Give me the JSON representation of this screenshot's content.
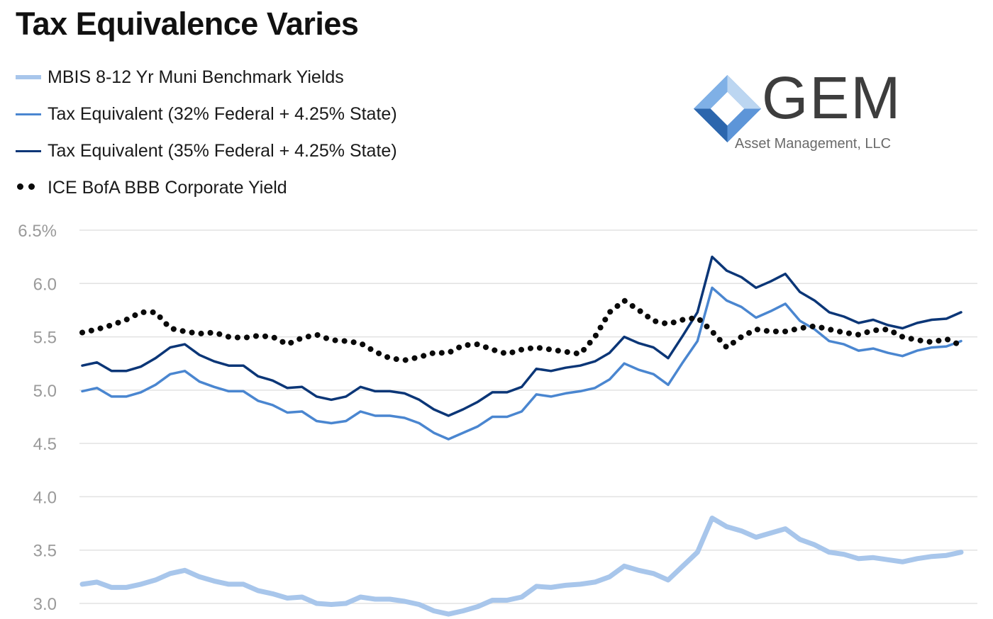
{
  "title": "Tax Equivalence Varies",
  "logo": {
    "name": "GEM",
    "subtitle": "Asset Management, LLC"
  },
  "colors": {
    "muni": "#a8c6eb",
    "te32": "#4a86d0",
    "te35": "#0b3677",
    "bbb": "#0a0a0a",
    "grid": "#e2e2e2",
    "tick": "#9a9a9a"
  },
  "chart_data": {
    "type": "line",
    "title": "Tax Equivalence Varies",
    "xlabel": "",
    "ylabel": "",
    "ylim": [
      3.0,
      6.5
    ],
    "yticks": [
      {
        "value": 6.5,
        "label": "6.5%"
      },
      {
        "value": 6.0,
        "label": "6.0"
      },
      {
        "value": 5.5,
        "label": "5.5"
      },
      {
        "value": 5.0,
        "label": "5.0"
      },
      {
        "value": 4.5,
        "label": "4.5"
      },
      {
        "value": 4.0,
        "label": "4.0"
      },
      {
        "value": 3.5,
        "label": "3.5"
      },
      {
        "value": 3.0,
        "label": "3.0"
      }
    ],
    "grid": true,
    "legend_position": "top-left",
    "x": [
      0,
      1,
      2,
      3,
      4,
      5,
      6,
      7,
      8,
      9,
      10,
      11,
      12,
      13,
      14,
      15,
      16,
      17,
      18,
      19,
      20,
      21,
      22,
      23,
      24,
      25,
      26,
      27,
      28,
      29,
      30,
      31,
      32,
      33,
      34,
      35,
      36,
      37,
      38,
      39,
      40,
      41,
      42,
      43,
      44,
      45,
      46,
      47,
      48,
      49,
      50,
      51,
      52,
      53,
      54,
      55,
      56,
      57,
      58,
      59,
      60
    ],
    "series": [
      {
        "name": "MBIS 8-12 Yr Muni Benchmark Yields",
        "style": "muni",
        "values": [
          3.18,
          3.2,
          3.15,
          3.15,
          3.18,
          3.22,
          3.28,
          3.31,
          3.25,
          3.21,
          3.18,
          3.18,
          3.12,
          3.09,
          3.05,
          3.06,
          3.0,
          2.99,
          3.0,
          3.06,
          3.04,
          3.04,
          3.02,
          2.99,
          2.93,
          2.9,
          2.93,
          2.97,
          3.03,
          3.03,
          3.06,
          3.16,
          3.15,
          3.17,
          3.18,
          3.2,
          3.25,
          3.35,
          3.31,
          3.28,
          3.22,
          3.35,
          3.48,
          3.8,
          3.72,
          3.68,
          3.62,
          3.66,
          3.7,
          3.6,
          3.55,
          3.48,
          3.46,
          3.42,
          3.43,
          3.41,
          3.39,
          3.42,
          3.44,
          3.45,
          3.48
        ]
      },
      {
        "name": "Tax Equivalent (32% Federal + 4.25% State)",
        "style": "te32",
        "values": [
          4.99,
          5.02,
          4.94,
          4.94,
          4.98,
          5.05,
          5.15,
          5.18,
          5.08,
          5.03,
          4.99,
          4.99,
          4.9,
          4.86,
          4.79,
          4.8,
          4.71,
          4.69,
          4.71,
          4.8,
          4.76,
          4.76,
          4.74,
          4.69,
          4.6,
          4.54,
          4.6,
          4.66,
          4.75,
          4.75,
          4.8,
          4.96,
          4.94,
          4.97,
          4.99,
          5.02,
          5.1,
          5.25,
          5.19,
          5.15,
          5.05,
          5.26,
          5.46,
          5.96,
          5.84,
          5.78,
          5.68,
          5.74,
          5.81,
          5.65,
          5.57,
          5.46,
          5.43,
          5.37,
          5.39,
          5.35,
          5.32,
          5.37,
          5.4,
          5.41,
          5.46
        ]
      },
      {
        "name": "Tax Equivalent (35% Federal + 4.25% State)",
        "style": "te35",
        "values": [
          5.23,
          5.26,
          5.18,
          5.18,
          5.22,
          5.3,
          5.4,
          5.43,
          5.33,
          5.27,
          5.23,
          5.23,
          5.13,
          5.09,
          5.02,
          5.03,
          4.94,
          4.91,
          4.94,
          5.03,
          4.99,
          4.99,
          4.97,
          4.91,
          4.82,
          4.76,
          4.82,
          4.89,
          4.98,
          4.98,
          5.03,
          5.2,
          5.18,
          5.21,
          5.23,
          5.27,
          5.35,
          5.5,
          5.44,
          5.4,
          5.3,
          5.51,
          5.73,
          6.25,
          6.12,
          6.06,
          5.96,
          6.02,
          6.09,
          5.92,
          5.84,
          5.73,
          5.69,
          5.63,
          5.66,
          5.61,
          5.58,
          5.63,
          5.66,
          5.67,
          5.73
        ]
      },
      {
        "name": "ICE BofA BBB Corporate Yield",
        "style": "bbb",
        "values": [
          5.54,
          5.57,
          5.61,
          5.66,
          5.73,
          5.73,
          5.58,
          5.55,
          5.53,
          5.54,
          5.5,
          5.49,
          5.51,
          5.5,
          5.43,
          5.49,
          5.52,
          5.47,
          5.46,
          5.44,
          5.36,
          5.3,
          5.28,
          5.31,
          5.35,
          5.35,
          5.42,
          5.43,
          5.38,
          5.34,
          5.38,
          5.4,
          5.38,
          5.36,
          5.34,
          5.5,
          5.73,
          5.84,
          5.75,
          5.65,
          5.62,
          5.66,
          5.68,
          5.55,
          5.4,
          5.5,
          5.57,
          5.55,
          5.55,
          5.58,
          5.6,
          5.57,
          5.54,
          5.52,
          5.56,
          5.57,
          5.5,
          5.47,
          5.45,
          5.48,
          5.42
        ]
      }
    ]
  }
}
